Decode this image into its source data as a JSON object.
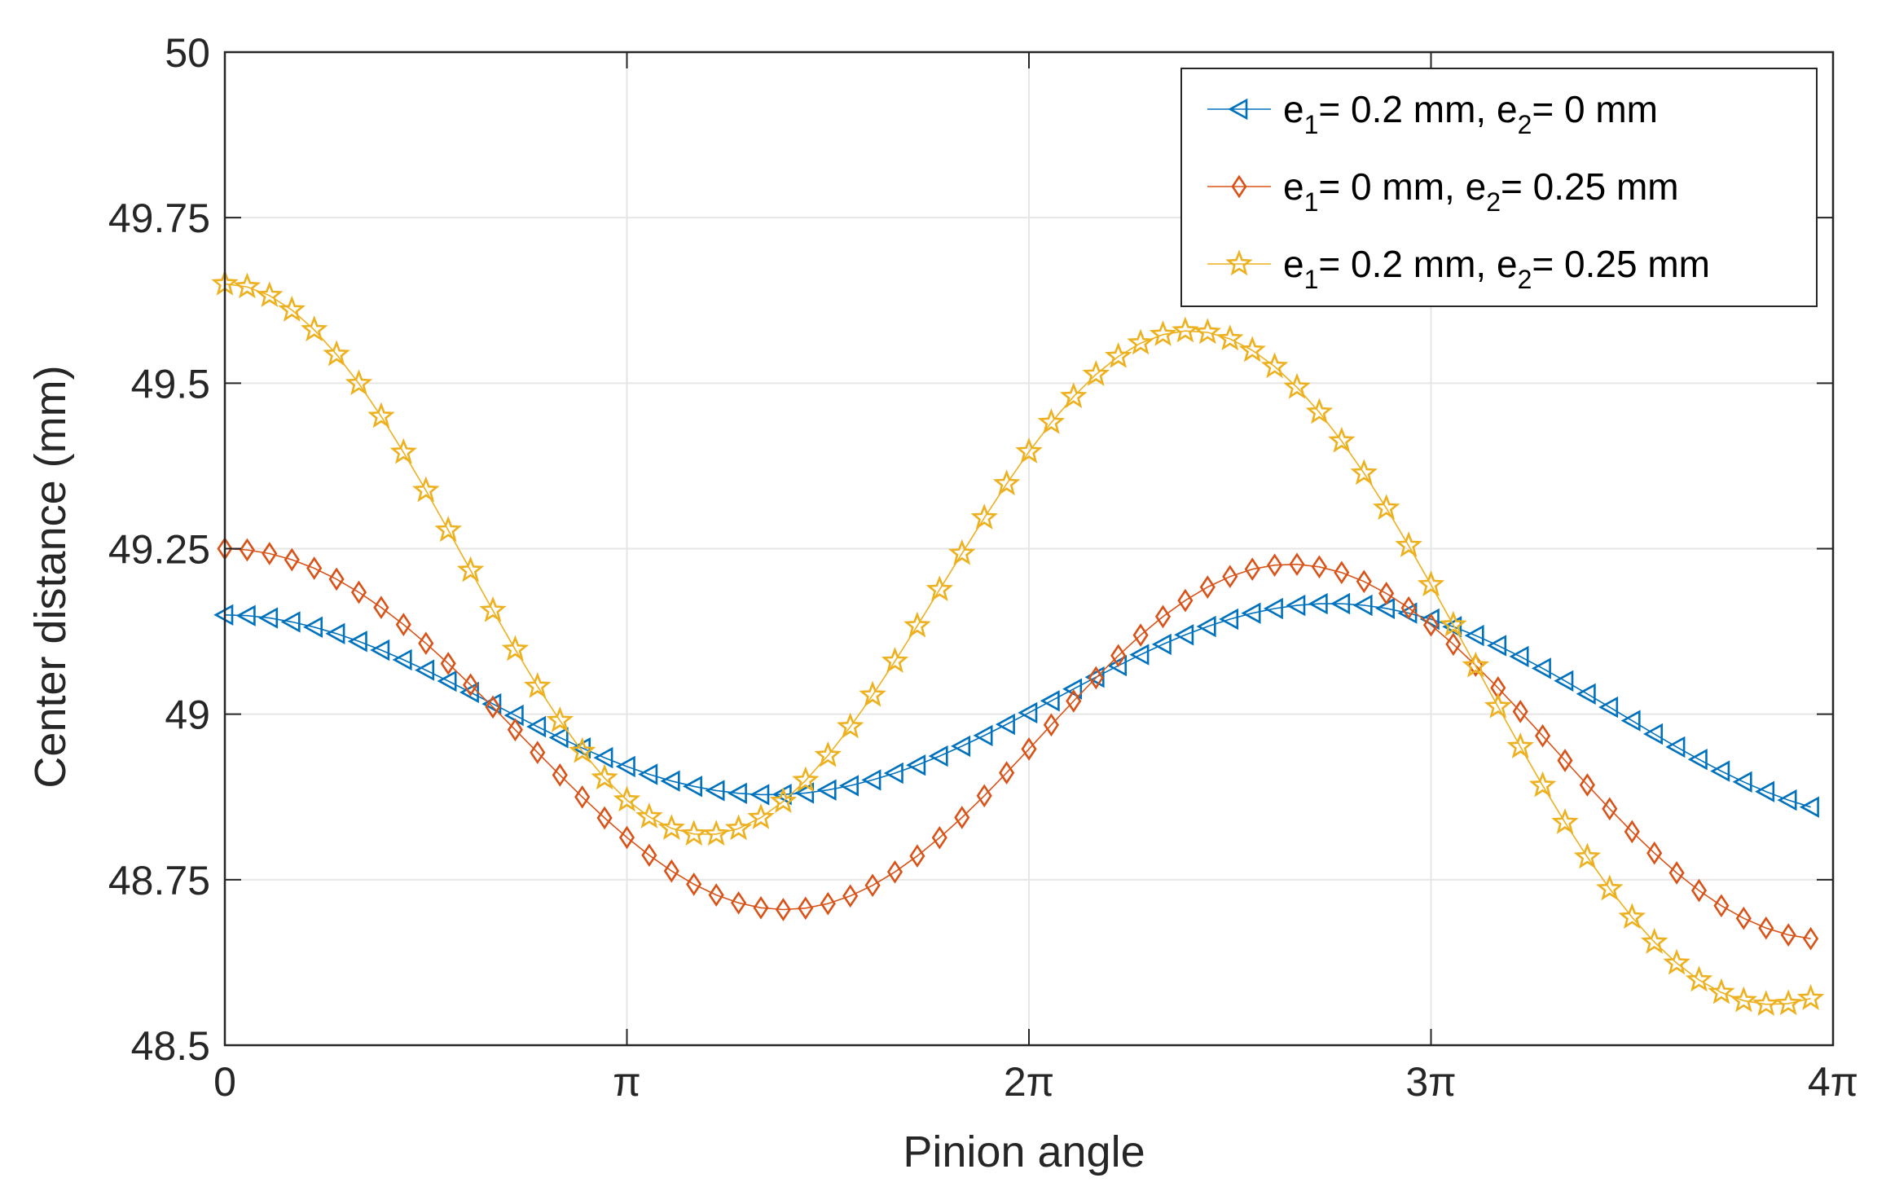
{
  "chart_data": {
    "type": "line",
    "title": "",
    "xlabel": "Pinion angle",
    "ylabel": "Center distance (mm)",
    "xlim": [
      0,
      12.566370614359172
    ],
    "ylim": [
      48.5,
      50
    ],
    "grid": true,
    "legend_position": "top-right",
    "xticks": [
      {
        "value": 0,
        "label": "0"
      },
      {
        "value": 3.141592653589793,
        "label": "π"
      },
      {
        "value": 6.283185307179586,
        "label": "2π"
      },
      {
        "value": 9.42477796076938,
        "label": "3π"
      },
      {
        "value": 12.566370614359172,
        "label": "4π"
      }
    ],
    "yticks": [
      {
        "value": 48.5,
        "label": "48.5"
      },
      {
        "value": 48.75,
        "label": "48.75"
      },
      {
        "value": 49,
        "label": "49"
      },
      {
        "value": 49.25,
        "label": "49.25"
      },
      {
        "value": 49.5,
        "label": "49.5"
      },
      {
        "value": 49.75,
        "label": "49.75"
      },
      {
        "value": 50,
        "label": "50"
      }
    ],
    "x_start": 0,
    "x_step": 0.17453292519943295,
    "n_points": 72,
    "series": [
      {
        "name": "e1= 0.2 mm, e2= 0 mm",
        "legend": {
          "e": "e",
          "sub1": "1",
          "mid": "= 0.2 mm, ",
          "sub2": "2",
          "end": "= 0 mm"
        },
        "color": "#0072BD",
        "marker": "triangle-left",
        "values": [
          49.15,
          49.1488,
          49.1453,
          49.1394,
          49.1315,
          49.1217,
          49.11,
          49.0968,
          49.0822,
          49.0665,
          49.05,
          49.0329,
          49.0155,
          48.9982,
          48.9811,
          48.9646,
          48.9489,
          48.9343,
          48.921,
          48.9092,
          48.8991,
          48.8909,
          48.8847,
          48.8805,
          48.8785,
          48.8787,
          48.881,
          48.8855,
          48.8921,
          48.9006,
          48.911,
          48.9231,
          48.9367,
          48.9517,
          48.9677,
          48.9847,
          49.0022,
          49.0201,
          49.0381,
          49.0559,
          49.0733,
          49.0899,
          49.1055,
          49.1198,
          49.1325,
          49.1435,
          49.1526,
          49.1596,
          49.1644,
          49.1668,
          49.1669,
          49.1645,
          49.1598,
          49.1527,
          49.1435,
          49.1321,
          49.1188,
          49.1037,
          49.0871,
          49.0692,
          49.0503,
          49.0306,
          49.0105,
          48.9902,
          48.9701,
          48.9505,
          48.9317,
          48.914,
          48.8977,
          48.8831,
          48.8703,
          48.8597
        ]
      },
      {
        "name": "e1= 0 mm, e2= 0.25 mm",
        "legend": {
          "e": "e",
          "sub1": "1",
          "mid": "= 0 mm, ",
          "sub2": "2",
          "end": "= 0.25 mm"
        },
        "color": "#D95319",
        "marker": "diamond",
        "values": [
          49.25,
          49.2482,
          49.2426,
          49.2334,
          49.2205,
          49.204,
          49.1842,
          49.1612,
          49.1354,
          49.107,
          49.0765,
          49.0443,
          49.0108,
          48.9765,
          48.9421,
          48.908,
          48.8749,
          48.8433,
          48.8138,
          48.7869,
          48.7632,
          48.7431,
          48.7269,
          48.715,
          48.7076,
          48.7049,
          48.707,
          48.7139,
          48.7254,
          48.7414,
          48.7617,
          48.7858,
          48.8134,
          48.8439,
          48.8768,
          48.9115,
          48.9474,
          48.9838,
          49.0199,
          49.055,
          49.0884,
          49.1194,
          49.1474,
          49.1718,
          49.1921,
          49.2079,
          49.219,
          49.2252,
          49.2264,
          49.2226,
          49.2139,
          49.2004,
          49.1825,
          49.1605,
          49.1347,
          49.1056,
          49.0738,
          49.0397,
          49.004,
          48.9672,
          48.9301,
          48.8931,
          48.8571,
          48.8225,
          48.7901,
          48.7603,
          48.7337,
          48.7107,
          48.6917,
          48.6769,
          48.6666,
          48.6609
        ]
      },
      {
        "name": "e1= 0.2 mm, e2= 0.25 mm",
        "legend": {
          "e": "e",
          "sub1": "1",
          "mid": "= 0.2 mm, ",
          "sub2": "2",
          "end": "= 0.25 mm"
        },
        "color": "#EDB120",
        "marker": "pentagram",
        "values": [
          49.65,
          49.6455,
          49.6323,
          49.6105,
          49.5806,
          49.5433,
          49.4993,
          49.4497,
          49.3955,
          49.3378,
          49.2779,
          49.2171,
          49.1566,
          49.0978,
          49.0419,
          48.9902,
          48.9437,
          48.9035,
          48.8703,
          48.8449,
          48.8276,
          48.8189,
          48.8188,
          48.8272,
          48.8438,
          48.8682,
          48.8997,
          48.9376,
          48.9809,
          49.0287,
          49.0799,
          49.1334,
          49.1881,
          49.2428,
          49.2965,
          49.348,
          49.3963,
          49.4405,
          49.4797,
          49.5132,
          49.5403,
          49.5605,
          49.5734,
          49.5789,
          49.5767,
          49.5669,
          49.5496,
          49.5251,
          49.4938,
          49.4561,
          49.4126,
          49.364,
          49.3111,
          49.2546,
          49.1955,
          49.1346,
          49.0729,
          49.0113,
          48.9508,
          48.8922,
          48.8364,
          48.7842,
          48.7362,
          48.6932,
          48.6556,
          48.6239,
          48.5985,
          48.5796,
          48.5673,
          48.5618,
          48.5629,
          48.5706
        ]
      }
    ]
  }
}
